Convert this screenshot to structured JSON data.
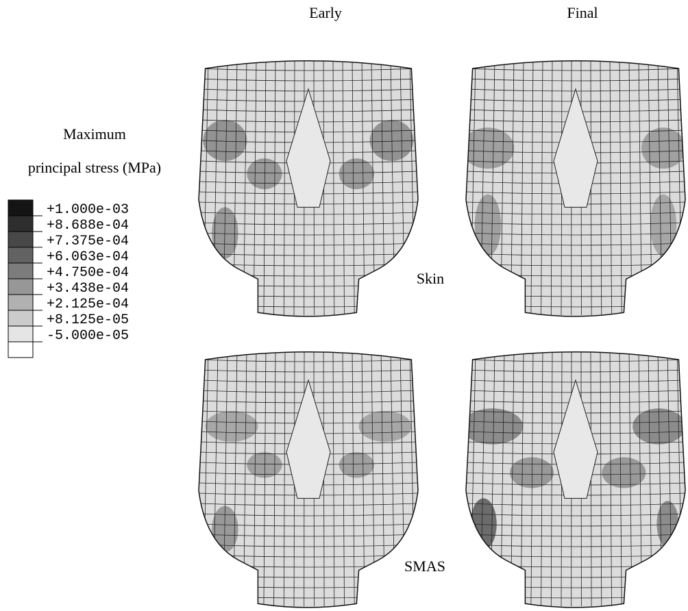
{
  "columns": [
    "Early",
    "Final"
  ],
  "rows": [
    "Skin",
    "SMAS"
  ],
  "legend": {
    "title": [
      "Maximum",
      "principal stress (MPa)"
    ],
    "labels": [
      "+1.000e-03",
      "+8.688e-04",
      "+7.375e-04",
      "+6.063e-04",
      "+4.750e-04",
      "+3.438e-04",
      "+2.125e-04",
      "+8.125e-05",
      "-5.000e-05"
    ]
  }
}
